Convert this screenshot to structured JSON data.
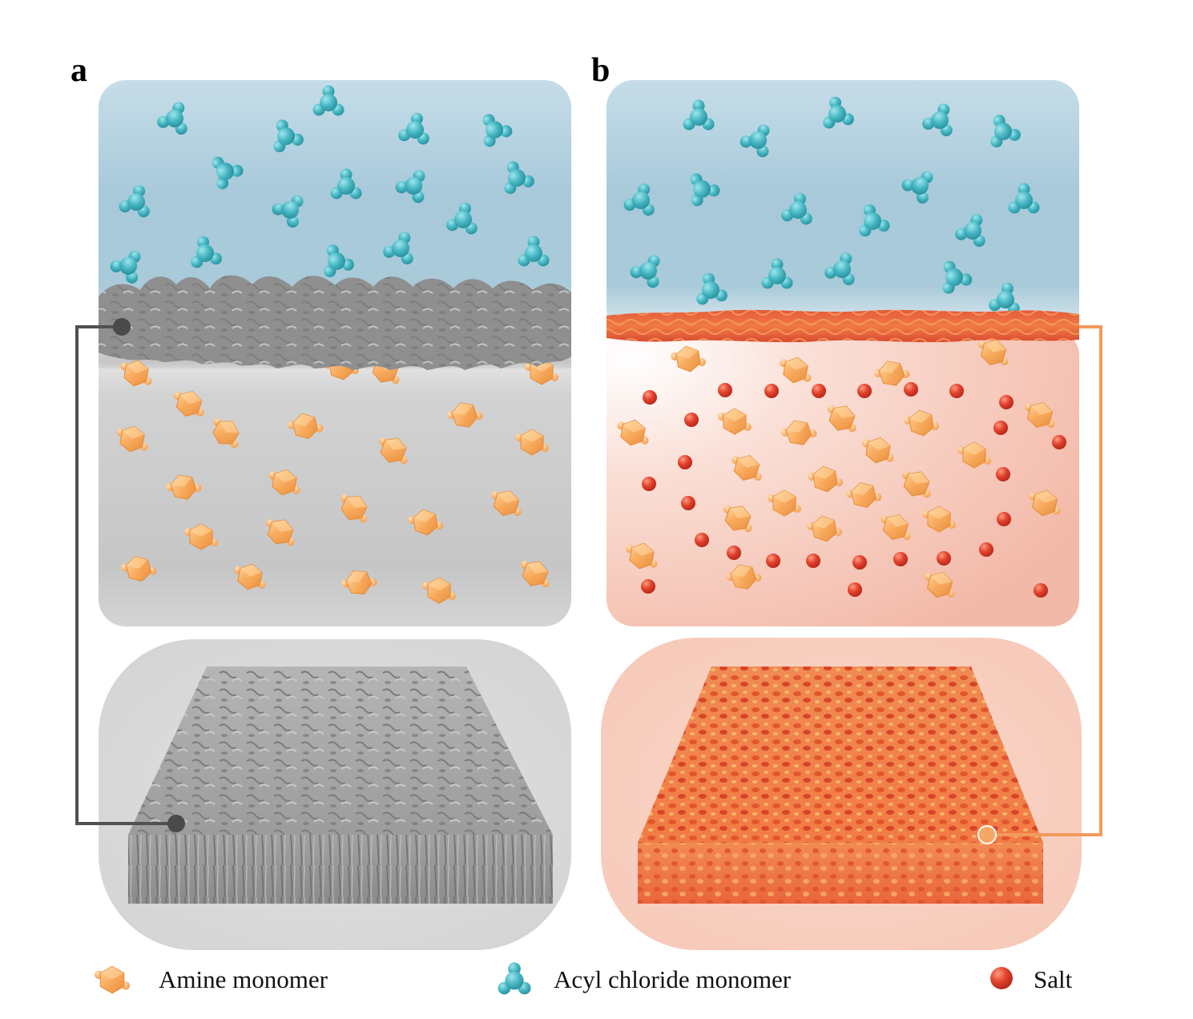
{
  "panels": [
    {
      "id": "a",
      "label": "a"
    },
    {
      "id": "b",
      "label": "b"
    }
  ],
  "legend": [
    {
      "id": "amine",
      "label": "Amine monomer",
      "icon": "amine-monomer-icon",
      "color": "#f7a95a"
    },
    {
      "id": "acyl",
      "label": "Acyl chloride monomer",
      "icon": "acyl-chloride-monomer-icon",
      "color": "#4fb9c4"
    },
    {
      "id": "salt",
      "label": "Salt",
      "icon": "salt-icon",
      "color": "#d9362a"
    }
  ],
  "colors": {
    "organic_phase_top": "#c9dfe9",
    "organic_phase": "#a6c9da",
    "aqueous_phase_a": "#c8c8c8",
    "aqueous_phase_b": "#f6c7b8",
    "membrane_a": "#8d8d8d",
    "membrane_b": "#e8553a",
    "connector_a": "#505050",
    "connector_b": "#f29a5c"
  }
}
